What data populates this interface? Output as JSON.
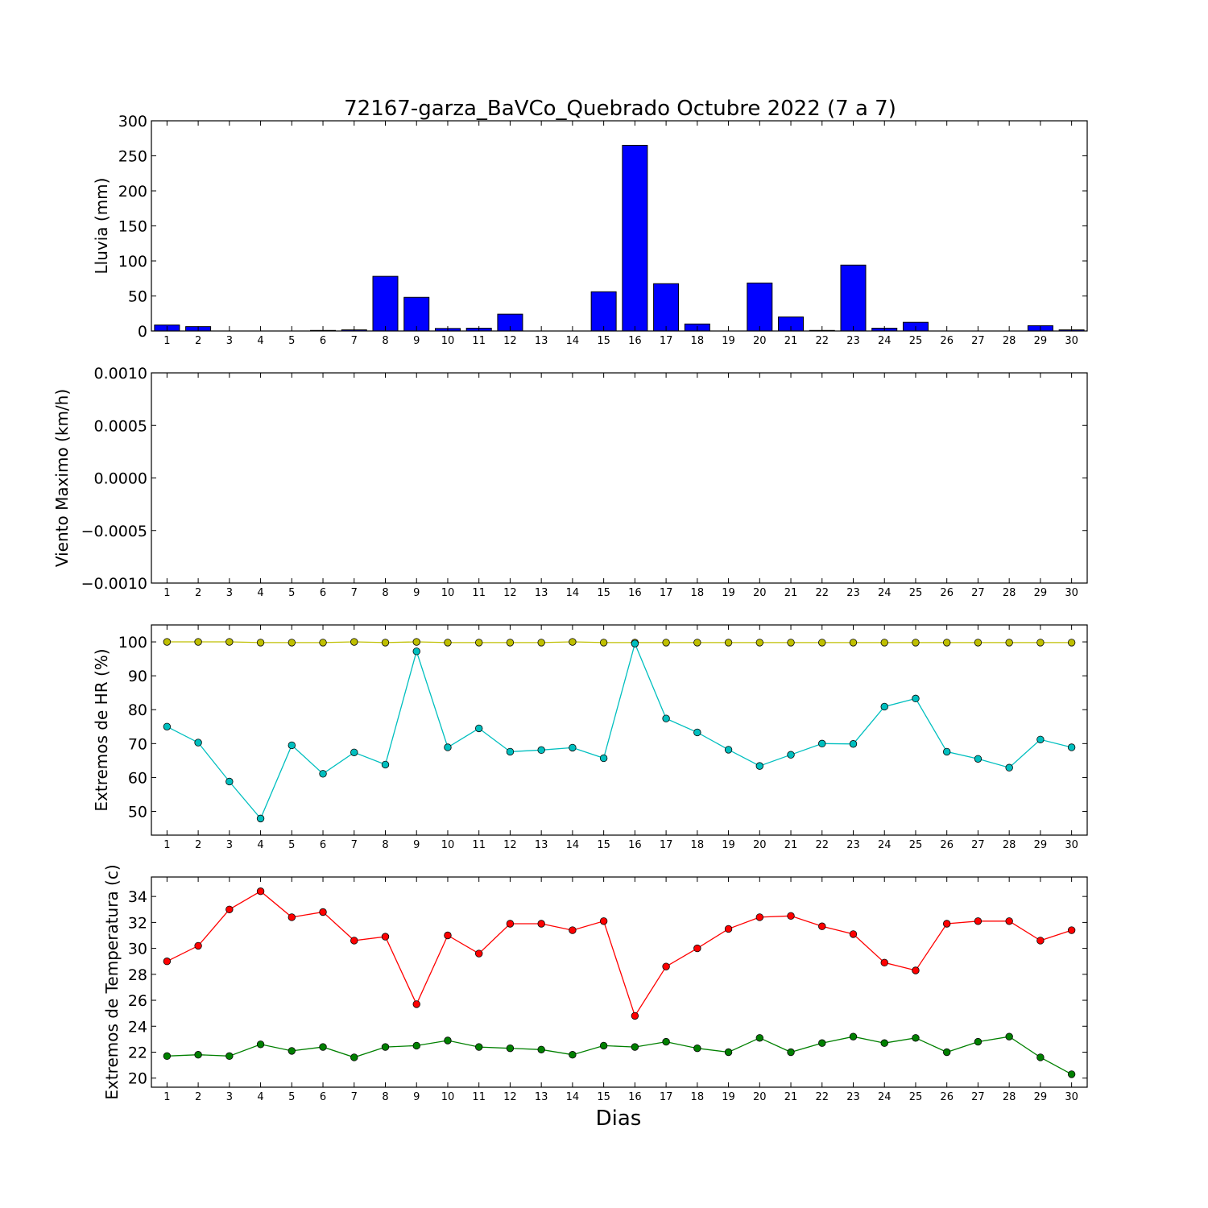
{
  "title": "72167-garza_BaVCo_Quebrado Octubre 2022  (7 a 7)",
  "xlabel": "Dias",
  "chart_data": [
    {
      "type": "bar",
      "ylabel": "Lluvia (mm)",
      "ylim": [
        0,
        300
      ],
      "yticks": [
        0,
        50,
        100,
        150,
        200,
        250,
        300
      ],
      "ytick_labels": [
        "0",
        "50",
        "100",
        "150",
        "200",
        "250",
        "300"
      ],
      "categories": [
        "1",
        "2",
        "3",
        "4",
        "5",
        "6",
        "7",
        "8",
        "9",
        "10",
        "11",
        "12",
        "13",
        "14",
        "15",
        "16",
        "17",
        "18",
        "19",
        "20",
        "21",
        "22",
        "23",
        "24",
        "25",
        "26",
        "27",
        "28",
        "29",
        "30"
      ],
      "series": [
        {
          "color": "#0000ff",
          "values": [
            8.6,
            6.2,
            0,
            0,
            0,
            0.8,
            1.6,
            78,
            48,
            3.6,
            4,
            24,
            0,
            0,
            56,
            265,
            67.5,
            10,
            0,
            68.5,
            20,
            0.8,
            94,
            4,
            12.4,
            0,
            0,
            0,
            7.6,
            1.6
          ]
        }
      ]
    },
    {
      "type": "line",
      "ylabel": "Viento Maximo (km/h)",
      "ylim": [
        -0.001,
        0.001
      ],
      "yticks": [
        -0.001,
        -0.0005,
        0,
        0.0005,
        0.001
      ],
      "ytick_labels": [
        "−0.0010",
        "−0.0005",
        "0.0000",
        "0.0005",
        "0.0010"
      ],
      "categories": [
        "1",
        "2",
        "3",
        "4",
        "5",
        "6",
        "7",
        "8",
        "9",
        "10",
        "11",
        "12",
        "13",
        "14",
        "15",
        "16",
        "17",
        "18",
        "19",
        "20",
        "21",
        "22",
        "23",
        "24",
        "25",
        "26",
        "27",
        "28",
        "29",
        "30"
      ],
      "series": []
    },
    {
      "type": "line",
      "ylabel": "Extremos de HR (%)",
      "ylim": [
        43,
        105
      ],
      "yticks": [
        50,
        60,
        70,
        80,
        90,
        100
      ],
      "ytick_labels": [
        "50",
        "60",
        "70",
        "80",
        "90",
        "100"
      ],
      "categories": [
        "1",
        "2",
        "3",
        "4",
        "5",
        "6",
        "7",
        "8",
        "9",
        "10",
        "11",
        "12",
        "13",
        "14",
        "15",
        "16",
        "17",
        "18",
        "19",
        "20",
        "21",
        "22",
        "23",
        "24",
        "25",
        "26",
        "27",
        "28",
        "29",
        "30"
      ],
      "series": [
        {
          "color": "#bfbf00",
          "values": [
            100,
            100,
            100,
            99.8,
            99.8,
            99.8,
            100,
            99.8,
            100,
            99.8,
            99.8,
            99.8,
            99.8,
            100,
            99.8,
            99.8,
            99.8,
            99.8,
            99.8,
            99.8,
            99.8,
            99.8,
            99.8,
            99.8,
            99.8,
            99.8,
            99.8,
            99.8,
            99.8,
            99.8
          ]
        },
        {
          "color": "#00bfbf",
          "values": [
            75,
            70.3,
            58.8,
            47.9,
            69.5,
            61.1,
            67.4,
            63.8,
            97.2,
            68.9,
            74.5,
            67.6,
            68.1,
            68.8,
            65.7,
            99.5,
            77.4,
            73.3,
            68.2,
            63.4,
            66.7,
            70,
            69.9,
            80.9,
            83.3,
            67.6,
            65.5,
            62.9,
            71.2,
            68.9
          ]
        }
      ]
    },
    {
      "type": "line",
      "ylabel": "Extremos de Temperatura (c)",
      "ylim": [
        19.3,
        35.5
      ],
      "yticks": [
        20,
        22,
        24,
        26,
        28,
        30,
        32,
        34
      ],
      "ytick_labels": [
        "20",
        "22",
        "24",
        "26",
        "28",
        "30",
        "32",
        "34"
      ],
      "categories": [
        "1",
        "2",
        "3",
        "4",
        "5",
        "6",
        "7",
        "8",
        "9",
        "10",
        "11",
        "12",
        "13",
        "14",
        "15",
        "16",
        "17",
        "18",
        "19",
        "20",
        "21",
        "22",
        "23",
        "24",
        "25",
        "26",
        "27",
        "28",
        "29",
        "30"
      ],
      "series": [
        {
          "color": "#ff0000",
          "values": [
            29,
            30.2,
            33,
            34.4,
            32.4,
            32.8,
            30.6,
            30.9,
            25.7,
            31,
            29.6,
            31.9,
            31.9,
            31.4,
            32.1,
            24.8,
            28.6,
            30,
            31.5,
            32.4,
            32.5,
            31.7,
            31.1,
            28.9,
            28.3,
            31.9,
            32.1,
            32.1,
            30.6,
            31.4
          ]
        },
        {
          "color": "#008000",
          "values": [
            21.7,
            21.8,
            21.7,
            22.6,
            22.1,
            22.4,
            21.6,
            22.4,
            22.5,
            22.9,
            22.4,
            22.3,
            22.2,
            21.8,
            22.5,
            22.4,
            22.8,
            22.3,
            22,
            23.1,
            22,
            22.7,
            23.2,
            22.7,
            23.1,
            22,
            22.8,
            23.2,
            21.6,
            20.3
          ]
        }
      ]
    }
  ]
}
